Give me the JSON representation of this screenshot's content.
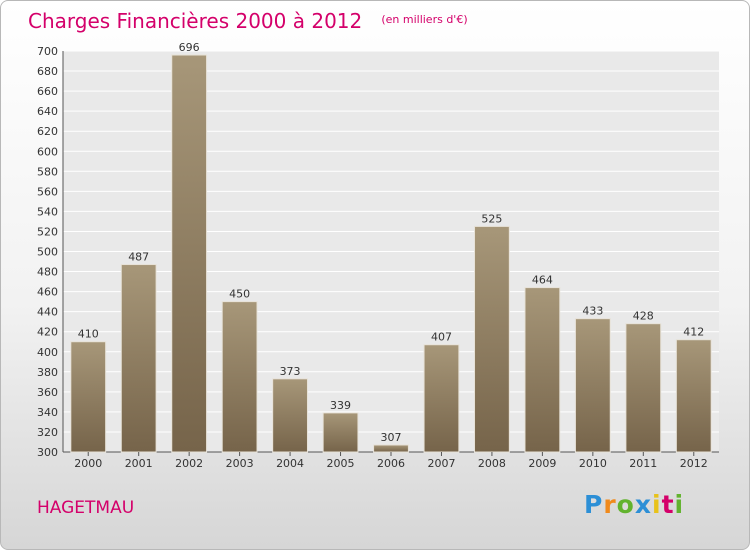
{
  "chart_data": {
    "type": "bar",
    "title": "Charges Financières 2000 à 2012",
    "subtitle": "(en milliers d'€)",
    "categories": [
      "2000",
      "2001",
      "2002",
      "2003",
      "2004",
      "2005",
      "2006",
      "2007",
      "2008",
      "2009",
      "2010",
      "2011",
      "2012"
    ],
    "values": [
      410,
      487,
      696,
      450,
      373,
      339,
      307,
      407,
      525,
      464,
      433,
      428,
      412
    ],
    "ylim": [
      300,
      700
    ],
    "ytick_step": 20,
    "grid": true,
    "xlabel": "",
    "ylabel": "",
    "bar_color_top": "#a79779",
    "bar_color_bottom": "#76644a",
    "plot_bg": "#e9e9e9",
    "grid_color": "#ffffff"
  },
  "footer": {
    "city": "HAGETMAU",
    "logo_letters": [
      {
        "char": "P",
        "color": "#2c8fd6"
      },
      {
        "char": "r",
        "color": "#f08a1c"
      },
      {
        "char": "o",
        "color": "#62b32e"
      },
      {
        "char": "x",
        "color": "#2c8fd6"
      },
      {
        "char": "i",
        "color": "#e8c21a"
      },
      {
        "char": "t",
        "color": "#d4006a"
      },
      {
        "char": "i",
        "color": "#62b32e"
      }
    ]
  }
}
